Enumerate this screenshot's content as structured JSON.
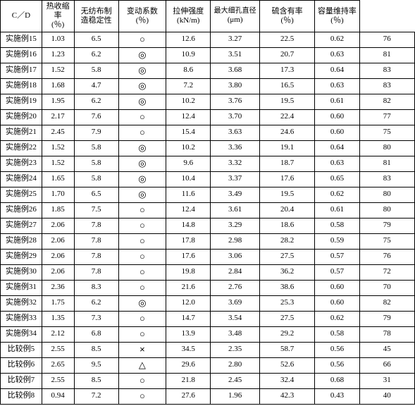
{
  "table": {
    "columns": [
      {
        "line1": "",
        "line2": "C／D"
      },
      {
        "line1": "热收缩率",
        "line2": "(％)"
      },
      {
        "line1": "无纺布制",
        "line2": "造稳定性"
      },
      {
        "line1": "变动系数",
        "line2": "(％)"
      },
      {
        "line1": "拉伸强度",
        "line2": "(kN/m)"
      },
      {
        "line1": "最大细孔直径",
        "line2": "(μm)"
      },
      {
        "line1": "硫含有率",
        "line2": "(％)"
      },
      {
        "line1": "容量维持率",
        "line2": "(％)"
      }
    ],
    "rows": [
      {
        "label": "实施例15",
        "cd": "1.03",
        "shrink": "6.5",
        "stab": "○",
        "cv": "12.6",
        "tensile": "3.27",
        "pore": "22.5",
        "sulfur": "0.62",
        "retain": "76"
      },
      {
        "label": "实施例16",
        "cd": "1.23",
        "shrink": "6.2",
        "stab": "◎",
        "cv": "10.9",
        "tensile": "3.51",
        "pore": "20.7",
        "sulfur": "0.63",
        "retain": "81"
      },
      {
        "label": "实施例17",
        "cd": "1.52",
        "shrink": "5.8",
        "stab": "◎",
        "cv": "8.6",
        "tensile": "3.68",
        "pore": "17.3",
        "sulfur": "0.64",
        "retain": "83"
      },
      {
        "label": "实施例18",
        "cd": "1.68",
        "shrink": "4.7",
        "stab": "◎",
        "cv": "7.2",
        "tensile": "3.80",
        "pore": "16.5",
        "sulfur": "0.63",
        "retain": "83"
      },
      {
        "label": "实施例19",
        "cd": "1.95",
        "shrink": "6.2",
        "stab": "◎",
        "cv": "10.2",
        "tensile": "3.76",
        "pore": "19.5",
        "sulfur": "0.61",
        "retain": "82"
      },
      {
        "label": "实施例20",
        "cd": "2.17",
        "shrink": "7.6",
        "stab": "○",
        "cv": "12.4",
        "tensile": "3.70",
        "pore": "22.4",
        "sulfur": "0.60",
        "retain": "77"
      },
      {
        "label": "实施例21",
        "cd": "2.45",
        "shrink": "7.9",
        "stab": "○",
        "cv": "15.4",
        "tensile": "3.63",
        "pore": "24.6",
        "sulfur": "0.60",
        "retain": "75"
      },
      {
        "label": "实施例22",
        "cd": "1.52",
        "shrink": "5.8",
        "stab": "◎",
        "cv": "10.2",
        "tensile": "3.36",
        "pore": "19.1",
        "sulfur": "0.64",
        "retain": "80"
      },
      {
        "label": "实施例23",
        "cd": "1.52",
        "shrink": "5.8",
        "stab": "◎",
        "cv": "9.6",
        "tensile": "3.32",
        "pore": "18.7",
        "sulfur": "0.63",
        "retain": "81"
      },
      {
        "label": "实施例24",
        "cd": "1.65",
        "shrink": "5.8",
        "stab": "◎",
        "cv": "10.4",
        "tensile": "3.37",
        "pore": "17.6",
        "sulfur": "0.65",
        "retain": "83"
      },
      {
        "label": "实施例25",
        "cd": "1.70",
        "shrink": "6.5",
        "stab": "◎",
        "cv": "11.6",
        "tensile": "3.49",
        "pore": "19.5",
        "sulfur": "0.62",
        "retain": "80"
      },
      {
        "label": "实施例26",
        "cd": "1.85",
        "shrink": "7.5",
        "stab": "○",
        "cv": "12.4",
        "tensile": "3.61",
        "pore": "20.4",
        "sulfur": "0.61",
        "retain": "80"
      },
      {
        "label": "实施例27",
        "cd": "2.06",
        "shrink": "7.8",
        "stab": "○",
        "cv": "14.8",
        "tensile": "3.29",
        "pore": "18.6",
        "sulfur": "0.58",
        "retain": "79"
      },
      {
        "label": "实施例28",
        "cd": "2.06",
        "shrink": "7.8",
        "stab": "○",
        "cv": "17.8",
        "tensile": "2.98",
        "pore": "28.2",
        "sulfur": "0.59",
        "retain": "75"
      },
      {
        "label": "实施例29",
        "cd": "2.06",
        "shrink": "7.8",
        "stab": "○",
        "cv": "17.6",
        "tensile": "3.06",
        "pore": "27.5",
        "sulfur": "0.57",
        "retain": "76"
      },
      {
        "label": "实施例30",
        "cd": "2.06",
        "shrink": "7.8",
        "stab": "○",
        "cv": "19.8",
        "tensile": "2.84",
        "pore": "36.2",
        "sulfur": "0.57",
        "retain": "72"
      },
      {
        "label": "实施例31",
        "cd": "2.36",
        "shrink": "8.3",
        "stab": "○",
        "cv": "21.6",
        "tensile": "2.76",
        "pore": "38.6",
        "sulfur": "0.60",
        "retain": "70"
      },
      {
        "label": "实施例32",
        "cd": "1.75",
        "shrink": "6.2",
        "stab": "◎",
        "cv": "12.0",
        "tensile": "3.69",
        "pore": "25.3",
        "sulfur": "0.60",
        "retain": "82"
      },
      {
        "label": "实施例33",
        "cd": "1.35",
        "shrink": "7.3",
        "stab": "○",
        "cv": "14.7",
        "tensile": "3.54",
        "pore": "27.5",
        "sulfur": "0.62",
        "retain": "79"
      },
      {
        "label": "实施例34",
        "cd": "2.12",
        "shrink": "6.8",
        "stab": "○",
        "cv": "13.9",
        "tensile": "3.48",
        "pore": "29.2",
        "sulfur": "0.58",
        "retain": "78"
      },
      {
        "label": "比较例5",
        "cd": "2.55",
        "shrink": "8.5",
        "stab": "×",
        "cv": "34.5",
        "tensile": "2.35",
        "pore": "58.7",
        "sulfur": "0.56",
        "retain": "45"
      },
      {
        "label": "比较例6",
        "cd": "2.65",
        "shrink": "9.5",
        "stab": "△",
        "cv": "29.6",
        "tensile": "2.80",
        "pore": "52.6",
        "sulfur": "0.56",
        "retain": "66"
      },
      {
        "label": "比较例7",
        "cd": "2.55",
        "shrink": "8.5",
        "stab": "○",
        "cv": "21.8",
        "tensile": "2.45",
        "pore": "32.4",
        "sulfur": "0.68",
        "retain": "31"
      },
      {
        "label": "比较例8",
        "cd": "0.94",
        "shrink": "7.2",
        "stab": "○",
        "cv": "27.6",
        "tensile": "1.96",
        "pore": "42.3",
        "sulfur": "0.43",
        "retain": "40"
      }
    ]
  }
}
